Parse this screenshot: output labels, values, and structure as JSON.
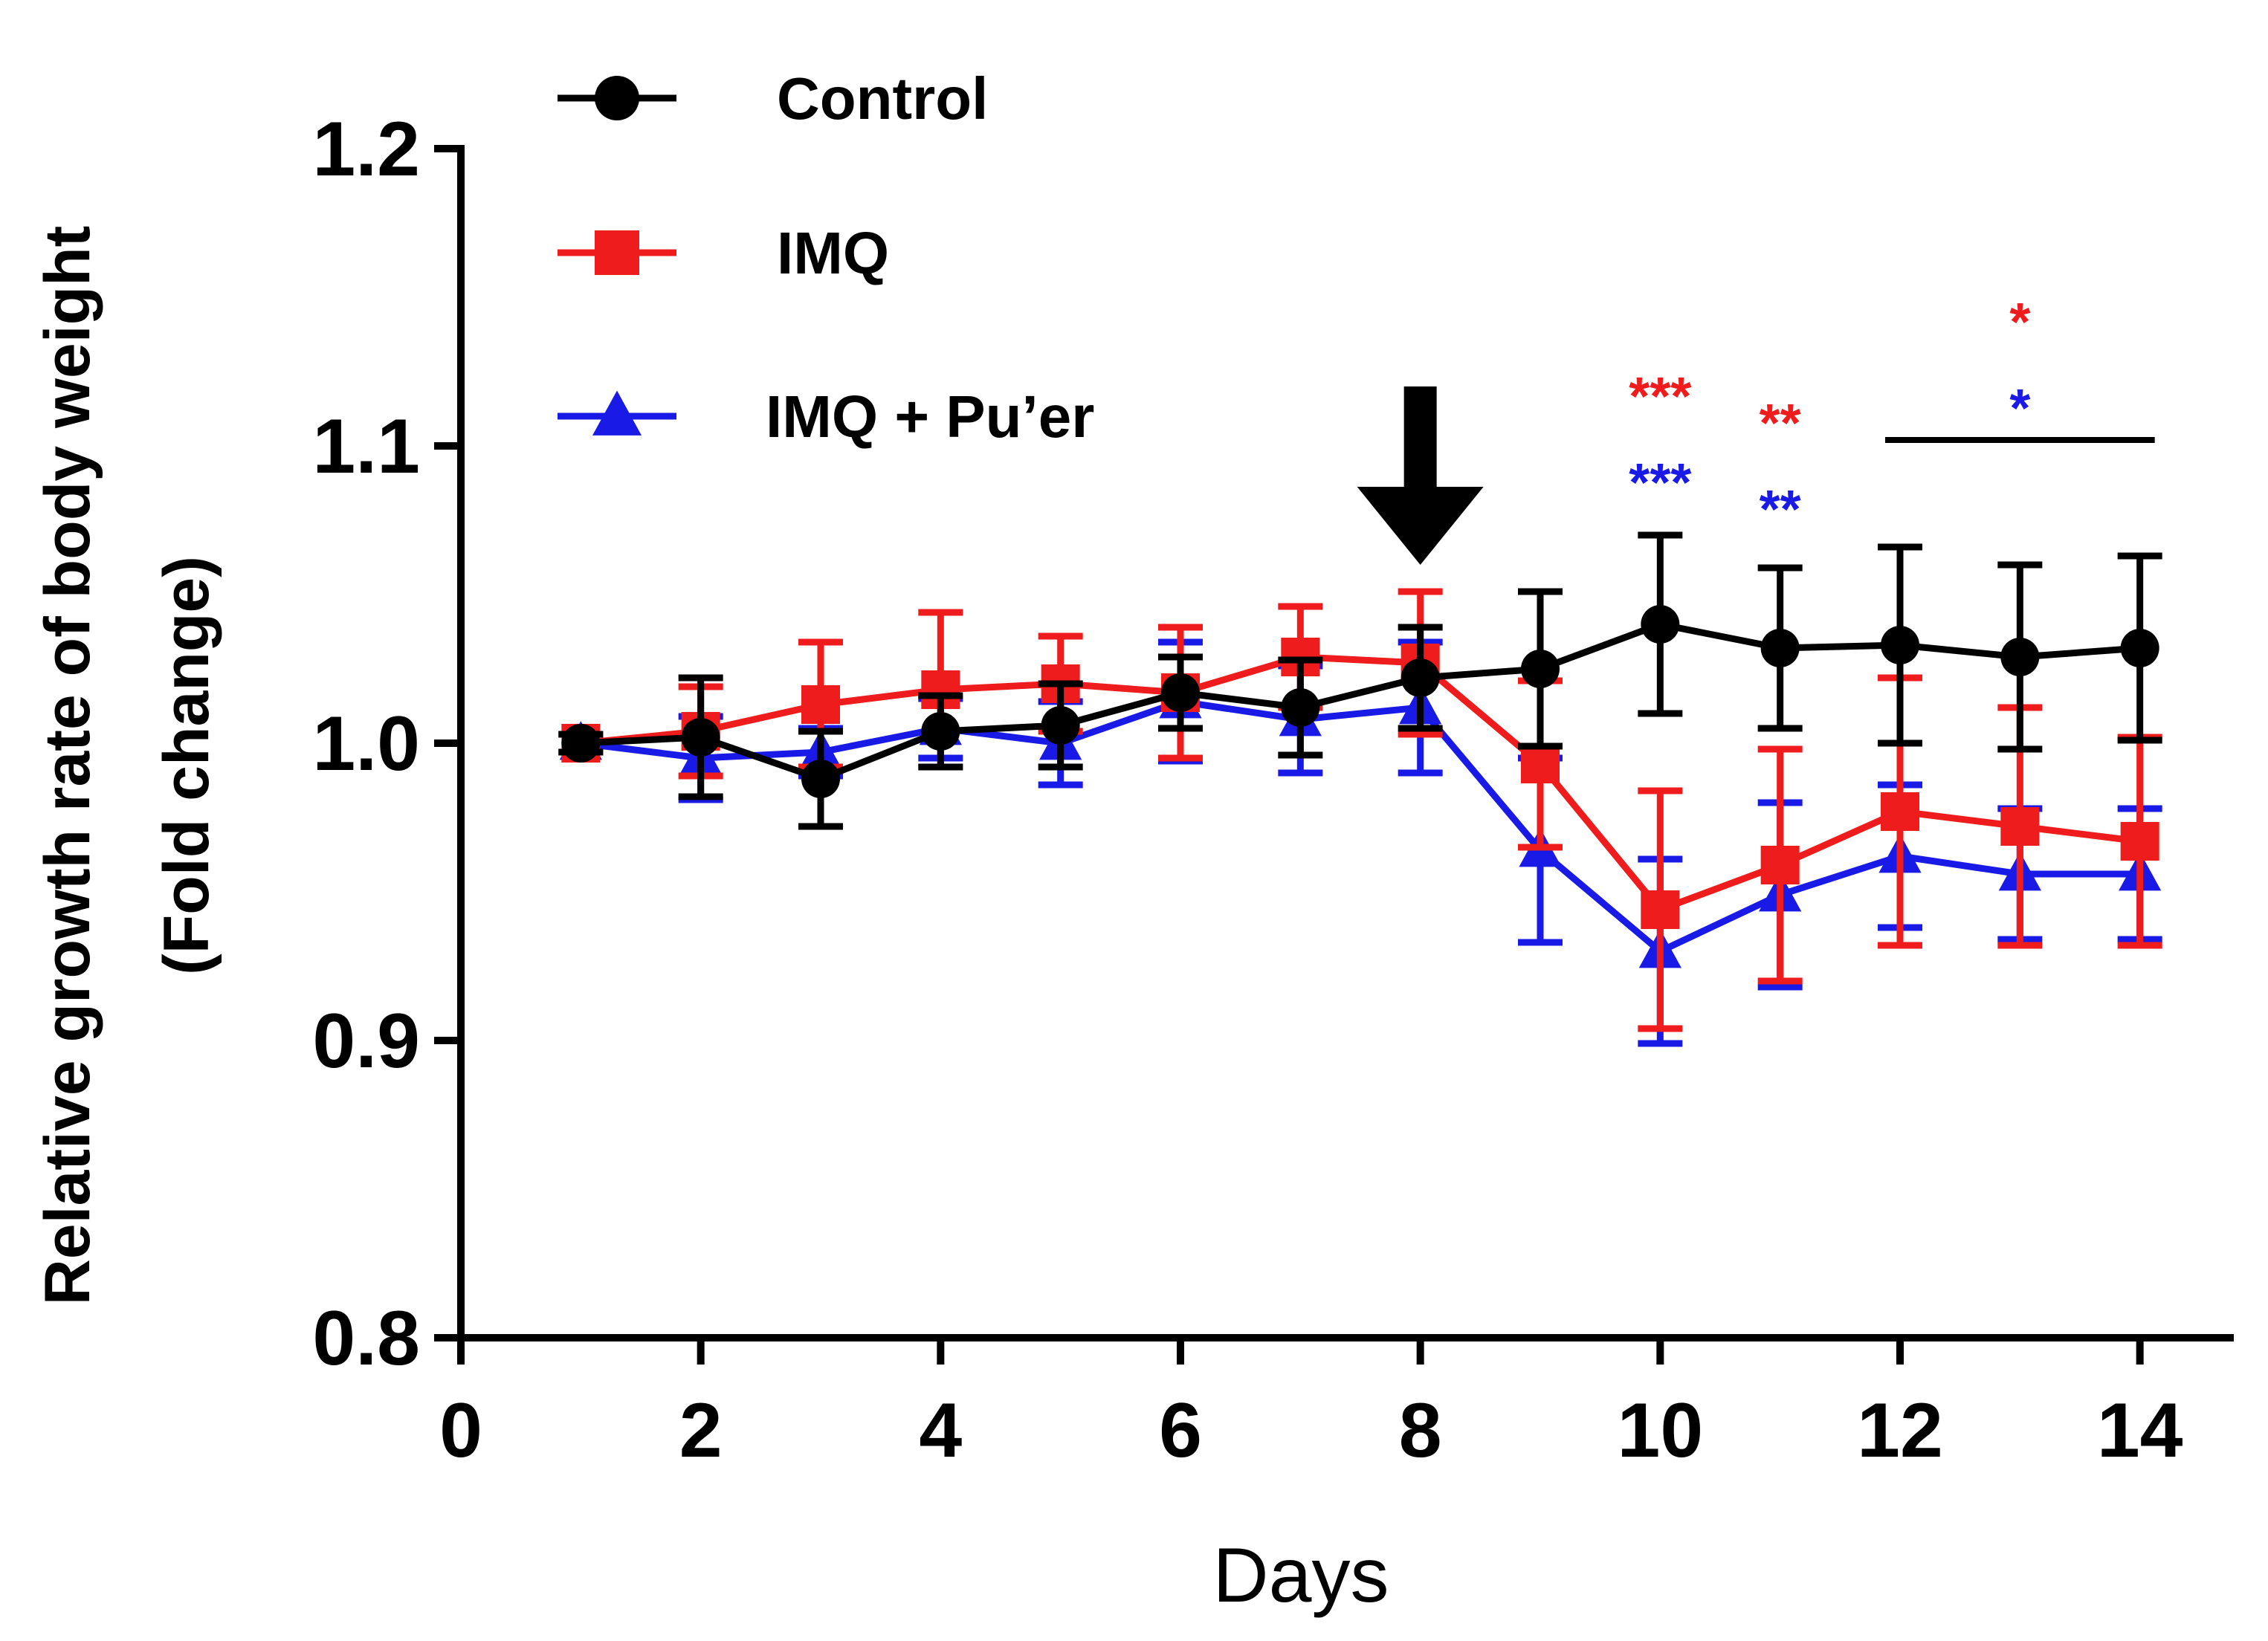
{
  "chart_data": {
    "type": "line",
    "xlabel": "Days",
    "ylabel_lines": [
      "Relative growth rate of body weight",
      "(Fold change)"
    ],
    "xlim": [
      0,
      15
    ],
    "ylim": [
      0.8,
      1.2
    ],
    "x_ticks": [
      "0",
      "2",
      "4",
      "6",
      "8",
      "10",
      "12",
      "14"
    ],
    "y_ticks": [
      "0.8",
      "0.9",
      "1.0",
      "1.1",
      "1.2"
    ],
    "x": [
      1,
      2,
      3,
      4,
      5,
      6,
      7,
      8,
      9,
      10,
      11,
      12,
      13,
      14
    ],
    "series": [
      {
        "name": "Control",
        "color": "#000000",
        "marker": "circle",
        "values": [
          1.0,
          1.002,
          0.988,
          1.004,
          1.006,
          1.017,
          1.012,
          1.022,
          1.025,
          1.04,
          1.032,
          1.033,
          1.029,
          1.032
        ],
        "errors": [
          0.003,
          0.02,
          0.016,
          0.012,
          0.014,
          0.012,
          0.016,
          0.017,
          0.026,
          0.03,
          0.027,
          0.033,
          0.031,
          0.031
        ]
      },
      {
        "name": "IMQ",
        "color": "#ee1c1c",
        "marker": "square",
        "values": [
          1.0,
          1.004,
          1.013,
          1.018,
          1.02,
          1.017,
          1.029,
          1.027,
          0.993,
          0.944,
          0.959,
          0.977,
          0.972,
          0.967
        ],
        "errors": [
          0.003,
          0.015,
          0.021,
          0.026,
          0.016,
          0.022,
          0.017,
          0.024,
          0.028,
          0.04,
          0.039,
          0.045,
          0.04,
          0.035
        ]
      },
      {
        "name": "IMQ + Pu’er",
        "color": "#1a1ae6",
        "marker": "triangle",
        "values": [
          1.0,
          0.995,
          0.997,
          1.005,
          1.0,
          1.014,
          1.008,
          1.012,
          0.964,
          0.93,
          0.949,
          0.962,
          0.956,
          0.956
        ],
        "errors": [
          0.003,
          0.014,
          0.008,
          0.01,
          0.014,
          0.02,
          0.018,
          0.022,
          0.031,
          0.031,
          0.031,
          0.024,
          0.022,
          0.022
        ]
      }
    ],
    "annotations": [
      {
        "type": "arrow",
        "x": 8,
        "label": ""
      },
      {
        "type": "text",
        "x": 10,
        "y": 1.123,
        "text": "***",
        "color": "#ee1c1c"
      },
      {
        "type": "text",
        "x": 10,
        "y": 1.094,
        "text": "***",
        "color": "#1a1ae6"
      },
      {
        "type": "text",
        "x": 11,
        "y": 1.114,
        "text": "**",
        "color": "#ee1c1c"
      },
      {
        "type": "text",
        "x": 11,
        "y": 1.085,
        "text": "**",
        "color": "#1a1ae6"
      },
      {
        "type": "text",
        "x": 13,
        "y": 1.148,
        "text": "*",
        "color": "#ee1c1c"
      },
      {
        "type": "text",
        "x": 13,
        "y": 1.119,
        "text": "*",
        "color": "#1a1ae6"
      },
      {
        "type": "bracket",
        "x_start": 12,
        "x_end": 14,
        "y": 1.102
      }
    ],
    "legend_position": "top-left",
    "grid": false
  }
}
